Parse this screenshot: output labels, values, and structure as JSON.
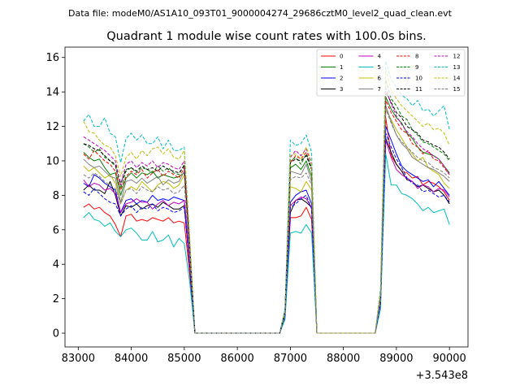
{
  "suptitle": "Data file: modeM0/AS1A10_093T01_9000004274_29686cztM0_level2_quad_clean.evt",
  "chart_data": {
    "type": "line",
    "title": "Quadrant 1 module wise count rates with 100.0s bins.",
    "xlabel": "",
    "ylabel": "",
    "x_offset_label": "+3.543e8",
    "xlim": [
      82750,
      90350
    ],
    "ylim": [
      -0.8,
      16.6
    ],
    "x_ticks": [
      83000,
      84000,
      85000,
      86000,
      87000,
      88000,
      89000,
      90000
    ],
    "x_tick_labels": [
      "83000",
      "84000",
      "85000",
      "86000",
      "87000",
      "88000",
      "89000",
      "90000"
    ],
    "y_ticks": [
      0,
      2,
      4,
      6,
      8,
      10,
      12,
      14,
      16
    ],
    "y_tick_labels": [
      "0",
      "2",
      "4",
      "6",
      "8",
      "10",
      "12",
      "14",
      "16"
    ],
    "x": [
      83100,
      83200,
      83300,
      83400,
      83500,
      83600,
      83700,
      83800,
      83900,
      84000,
      84100,
      84200,
      84300,
      84400,
      84500,
      84600,
      84700,
      84800,
      84900,
      85000,
      85100,
      85200,
      85300,
      85400,
      85500,
      85600,
      85700,
      85800,
      85900,
      86000,
      86100,
      86200,
      86300,
      86400,
      86500,
      86600,
      86700,
      86800,
      86900,
      87000,
      87100,
      87200,
      87300,
      87400,
      87500,
      87600,
      87700,
      87800,
      87900,
      88000,
      88100,
      88200,
      88300,
      88400,
      88500,
      88600,
      88700,
      88800,
      88900,
      89000,
      89100,
      89200,
      89300,
      89400,
      89500,
      89600,
      89700,
      89800,
      89900,
      90000
    ],
    "legend_position": "upper-right",
    "series": [
      {
        "name": "0",
        "color": "#ff0000",
        "dash": "solid",
        "values": [
          7.3,
          7.5,
          7.2,
          7.3,
          7.0,
          6.8,
          6.3,
          5.6,
          6.8,
          6.9,
          6.5,
          6.6,
          6.5,
          6.7,
          6.6,
          6.5,
          6.7,
          6.4,
          6.5,
          6.4,
          3.5,
          0,
          0,
          0,
          0,
          0,
          0,
          0,
          0,
          0,
          0,
          0,
          0,
          0,
          0,
          0,
          0,
          0,
          0.9,
          6.7,
          6.7,
          6.8,
          7.3,
          6.6,
          0,
          0,
          0,
          0,
          0,
          0,
          0,
          0,
          0,
          0,
          0,
          0,
          1.5,
          12.5,
          10.3,
          9.8,
          9.4,
          9.3,
          9.0,
          9.1,
          8.6,
          8.8,
          8.7,
          8.5,
          8.2,
          7.7
        ]
      },
      {
        "name": "1",
        "color": "#008000",
        "dash": "solid",
        "values": [
          10.5,
          10.2,
          10.0,
          10.1,
          9.6,
          9.2,
          9.3,
          8.0,
          9.0,
          9.3,
          9.0,
          9.3,
          9.2,
          9.4,
          9.0,
          9.2,
          9.1,
          9.0,
          9.1,
          9.3,
          5.0,
          0,
          0,
          0,
          0,
          0,
          0,
          0,
          0,
          0,
          0,
          0,
          0,
          0,
          0,
          0,
          0,
          0,
          1.2,
          9.6,
          9.8,
          9.5,
          10.0,
          9.1,
          0,
          0,
          0,
          0,
          0,
          0,
          0,
          0,
          0,
          0,
          0,
          0,
          2.2,
          13.7,
          13.0,
          12.5,
          12.2,
          11.6,
          11.3,
          10.8,
          10.5,
          10.4,
          10.3,
          10.1,
          9.7,
          9.3
        ]
      },
      {
        "name": "2",
        "color": "#0000ff",
        "dash": "solid",
        "values": [
          8.7,
          8.5,
          9.2,
          9.0,
          8.7,
          8.5,
          8.3,
          7.0,
          7.7,
          7.8,
          7.5,
          7.7,
          7.6,
          8.0,
          7.7,
          7.8,
          7.7,
          7.9,
          7.8,
          7.7,
          4.5,
          0,
          0,
          0,
          0,
          0,
          0,
          0,
          0,
          0,
          0,
          0,
          0,
          0,
          0,
          0,
          0,
          0,
          1.0,
          7.6,
          8.0,
          8.2,
          8.3,
          7.5,
          0,
          0,
          0,
          0,
          0,
          0,
          0,
          0,
          0,
          0,
          0,
          0,
          1.8,
          12.0,
          11.2,
          10.4,
          9.7,
          9.4,
          9.2,
          9.0,
          8.8,
          8.9,
          8.5,
          8.8,
          8.4,
          8.0
        ]
      },
      {
        "name": "3",
        "color": "#000000",
        "dash": "solid",
        "values": [
          8.3,
          8.6,
          8.3,
          8.3,
          8.1,
          8.8,
          8.0,
          6.8,
          7.4,
          7.3,
          7.5,
          7.2,
          7.4,
          7.5,
          7.3,
          7.6,
          7.4,
          7.2,
          7.2,
          7.4,
          4.0,
          0,
          0,
          0,
          0,
          0,
          0,
          0,
          0,
          0,
          0,
          0,
          0,
          0,
          0,
          0,
          0,
          0,
          1.0,
          7.0,
          7.7,
          7.8,
          7.6,
          7.3,
          0,
          0,
          0,
          0,
          0,
          0,
          0,
          0,
          0,
          0,
          0,
          0,
          1.7,
          11.3,
          10.5,
          9.8,
          9.4,
          8.9,
          8.8,
          8.5,
          8.6,
          8.4,
          8.2,
          8.3,
          8.0,
          7.5
        ]
      },
      {
        "name": "4",
        "color": "#bf00bf",
        "dash": "solid",
        "values": [
          8.9,
          8.5,
          8.7,
          8.6,
          8.3,
          8.4,
          8.1,
          7.0,
          7.5,
          7.6,
          7.8,
          7.6,
          7.6,
          7.2,
          7.5,
          7.7,
          7.4,
          7.6,
          7.5,
          7.7,
          4.2,
          0,
          0,
          0,
          0,
          0,
          0,
          0,
          0,
          0,
          0,
          0,
          0,
          0,
          0,
          0,
          0,
          0,
          1.1,
          7.4,
          7.7,
          7.9,
          7.8,
          7.3,
          0,
          0,
          0,
          0,
          0,
          0,
          0,
          0,
          0,
          0,
          0,
          0,
          1.7,
          11.2,
          10.2,
          9.5,
          9.2,
          9.0,
          8.8,
          8.4,
          8.6,
          8.5,
          8.2,
          8.4,
          8.3,
          7.9
        ]
      },
      {
        "name": "5",
        "color": "#00bfbf",
        "dash": "solid",
        "values": [
          6.7,
          7.0,
          6.6,
          6.5,
          6.2,
          6.4,
          5.9,
          5.6,
          6.0,
          6.1,
          5.8,
          5.4,
          5.4,
          5.9,
          5.3,
          5.4,
          5.7,
          5.0,
          5.5,
          5.2,
          3.0,
          0,
          0,
          0,
          0,
          0,
          0,
          0,
          0,
          0,
          0,
          0,
          0,
          0,
          0,
          0,
          0,
          0,
          0.8,
          5.8,
          5.9,
          5.8,
          6.3,
          5.8,
          0,
          0,
          0,
          0,
          0,
          0,
          0,
          0,
          0,
          0,
          0,
          0,
          1.4,
          10.4,
          8.6,
          8.6,
          8.1,
          8.0,
          7.8,
          7.5,
          7.1,
          7.3,
          7.0,
          7.1,
          7.2,
          6.3
        ]
      },
      {
        "name": "6",
        "color": "#bfbf00",
        "dash": "solid",
        "values": [
          9.7,
          9.4,
          9.6,
          9.3,
          9.0,
          9.2,
          8.7,
          7.5,
          8.3,
          8.5,
          8.3,
          8.8,
          8.5,
          8.2,
          8.6,
          8.8,
          8.7,
          8.4,
          8.6,
          9.2,
          4.8,
          0,
          0,
          0,
          0,
          0,
          0,
          0,
          0,
          0,
          0,
          0,
          0,
          0,
          0,
          0,
          0,
          0,
          1.1,
          8.5,
          8.4,
          8.2,
          8.8,
          8.3,
          0,
          0,
          0,
          0,
          0,
          0,
          0,
          0,
          0,
          0,
          0,
          0,
          1.9,
          13.0,
          12.4,
          11.8,
          11.3,
          10.8,
          10.4,
          10.0,
          10.2,
          9.6,
          9.4,
          9.2,
          8.7,
          8.4
        ]
      },
      {
        "name": "7",
        "color": "#808080",
        "dash": "solid",
        "values": [
          10.1,
          9.8,
          9.6,
          9.7,
          9.4,
          9.1,
          9.0,
          7.6,
          8.8,
          8.9,
          8.7,
          9.0,
          8.7,
          8.9,
          9.1,
          8.6,
          8.9,
          8.7,
          8.8,
          9.4,
          5.0,
          0,
          0,
          0,
          0,
          0,
          0,
          0,
          0,
          0,
          0,
          0,
          0,
          0,
          0,
          0,
          0,
          0,
          1.2,
          9.4,
          9.3,
          9.2,
          9.8,
          8.8,
          0,
          0,
          0,
          0,
          0,
          0,
          0,
          0,
          0,
          0,
          0,
          0,
          2.1,
          13.2,
          12.3,
          11.5,
          11.0,
          10.7,
          10.2,
          10.0,
          9.8,
          9.6,
          9.5,
          9.3,
          9.1,
          8.8
        ]
      },
      {
        "name": "8",
        "color": "#ff0000",
        "dash": "dashed",
        "values": [
          10.4,
          10.1,
          10.6,
          10.3,
          10.0,
          9.8,
          9.4,
          8.3,
          9.1,
          9.4,
          9.2,
          9.5,
          9.0,
          9.3,
          9.5,
          9.1,
          9.4,
          9.2,
          9.0,
          9.6,
          5.1,
          0,
          0,
          0,
          0,
          0,
          0,
          0,
          0,
          0,
          0,
          0,
          0,
          0,
          0,
          0,
          0,
          0,
          1.2,
          9.9,
          10.3,
          10.1,
          10.5,
          9.5,
          0,
          0,
          0,
          0,
          0,
          0,
          0,
          0,
          0,
          0,
          0,
          0,
          2.1,
          13.5,
          12.8,
          12.3,
          11.8,
          11.6,
          11.0,
          10.8,
          10.4,
          10.6,
          10.1,
          10.0,
          9.6,
          9.2
        ]
      },
      {
        "name": "9",
        "color": "#008000",
        "dash": "dashed",
        "values": [
          11.0,
          10.8,
          10.5,
          10.7,
          10.2,
          10.0,
          9.7,
          8.4,
          9.4,
          9.6,
          9.3,
          9.6,
          9.5,
          9.3,
          9.7,
          9.4,
          9.6,
          9.3,
          9.2,
          9.8,
          5.2,
          0,
          0,
          0,
          0,
          0,
          0,
          0,
          0,
          0,
          0,
          0,
          0,
          0,
          0,
          0,
          0,
          0,
          1.3,
          10.0,
          10.2,
          9.8,
          10.4,
          9.6,
          0,
          0,
          0,
          0,
          0,
          0,
          0,
          0,
          0,
          0,
          0,
          0,
          2.3,
          14.7,
          13.6,
          13.2,
          12.6,
          12.4,
          11.8,
          11.5,
          11.1,
          11.0,
          10.8,
          10.6,
          10.4,
          10.0
        ]
      },
      {
        "name": "10",
        "color": "#0000ff",
        "dash": "dashed",
        "values": [
          8.2,
          8.0,
          8.4,
          8.1,
          7.8,
          7.6,
          7.5,
          6.8,
          7.2,
          7.4,
          7.0,
          7.3,
          7.2,
          7.5,
          7.1,
          7.3,
          7.2,
          7.0,
          7.1,
          7.3,
          3.9,
          0,
          0,
          0,
          0,
          0,
          0,
          0,
          0,
          0,
          0,
          0,
          0,
          0,
          0,
          0,
          0,
          0,
          1.0,
          7.3,
          7.5,
          7.8,
          8.0,
          7.2,
          0,
          0,
          0,
          0,
          0,
          0,
          0,
          0,
          0,
          0,
          0,
          0,
          1.7,
          11.6,
          10.8,
          10.1,
          9.6,
          9.0,
          8.7,
          8.6,
          8.2,
          8.3,
          8.1,
          7.9,
          8.0,
          7.6
        ]
      },
      {
        "name": "11",
        "color": "#000000",
        "dash": "dashed",
        "values": [
          11.0,
          10.9,
          10.7,
          10.6,
          10.3,
          10.0,
          9.8,
          8.7,
          9.5,
          9.6,
          9.4,
          9.7,
          9.5,
          9.6,
          9.4,
          9.7,
          9.5,
          9.4,
          9.3,
          9.7,
          5.2,
          0,
          0,
          0,
          0,
          0,
          0,
          0,
          0,
          0,
          0,
          0,
          0,
          0,
          0,
          0,
          0,
          0,
          1.3,
          9.9,
          10.1,
          10.0,
          10.3,
          9.5,
          0,
          0,
          0,
          0,
          0,
          0,
          0,
          0,
          0,
          0,
          0,
          0,
          2.2,
          14.0,
          13.4,
          12.8,
          12.5,
          12.0,
          11.8,
          11.6,
          11.2,
          11.1,
          10.9,
          10.8,
          10.5,
          10.1
        ]
      },
      {
        "name": "12",
        "color": "#bf00bf",
        "dash": "dashed",
        "values": [
          11.4,
          11.2,
          11.0,
          10.8,
          10.6,
          10.3,
          10.0,
          8.6,
          9.8,
          10.0,
          9.6,
          9.9,
          9.7,
          10.0,
          9.6,
          9.9,
          9.8,
          9.6,
          9.5,
          10.0,
          5.3,
          0,
          0,
          0,
          0,
          0,
          0,
          0,
          0,
          0,
          0,
          0,
          0,
          0,
          0,
          0,
          0,
          0,
          1.3,
          10.2,
          10.6,
          10.3,
          10.7,
          9.8,
          0,
          0,
          0,
          0,
          0,
          0,
          0,
          0,
          0,
          0,
          0,
          0,
          2.3,
          14.2,
          13.3,
          12.6,
          12.1,
          11.7,
          11.4,
          11.0,
          10.7,
          10.5,
          10.3,
          10.1,
          9.7,
          9.2
        ]
      },
      {
        "name": "13",
        "color": "#00bfbf",
        "dash": "dashed",
        "values": [
          12.3,
          12.7,
          12.0,
          12.0,
          12.5,
          11.6,
          11.4,
          9.9,
          11.3,
          11.6,
          11.2,
          11.5,
          11.0,
          11.0,
          11.4,
          10.7,
          11.2,
          10.6,
          10.6,
          10.8,
          5.6,
          0,
          0,
          0,
          0,
          0,
          0,
          0,
          0,
          0,
          0,
          0,
          0,
          0,
          0,
          0,
          0,
          0,
          1.4,
          11.2,
          10.9,
          11.0,
          11.5,
          10.5,
          0,
          0,
          0,
          0,
          0,
          0,
          0,
          0,
          0,
          0,
          0,
          0,
          2.6,
          15.8,
          14.7,
          14.3,
          13.8,
          13.6,
          13.2,
          13.5,
          12.9,
          13.0,
          12.6,
          12.9,
          13.2,
          11.8
        ]
      },
      {
        "name": "14",
        "color": "#bfbf00",
        "dash": "dashed",
        "values": [
          12.3,
          11.7,
          11.6,
          11.2,
          10.9,
          10.8,
          10.3,
          9.1,
          10.2,
          10.5,
          10.1,
          10.6,
          10.3,
          10.7,
          10.8,
          10.4,
          10.7,
          10.2,
          10.1,
          10.6,
          5.6,
          0,
          0,
          0,
          0,
          0,
          0,
          0,
          0,
          0,
          0,
          0,
          0,
          0,
          0,
          0,
          0,
          0,
          1.3,
          10.3,
          10.4,
          10.1,
          10.8,
          9.9,
          0,
          0,
          0,
          0,
          0,
          0,
          0,
          0,
          0,
          0,
          0,
          0,
          2.4,
          15.3,
          14.1,
          13.6,
          13.2,
          12.9,
          12.6,
          12.3,
          12.0,
          12.2,
          11.8,
          11.9,
          11.6,
          10.9
        ]
      },
      {
        "name": "15",
        "color": "#808080",
        "dash": "dashed",
        "values": [
          9.2,
          9.0,
          9.3,
          9.1,
          8.8,
          8.6,
          8.4,
          7.5,
          8.3,
          8.4,
          8.1,
          8.5,
          8.3,
          8.2,
          8.5,
          8.3,
          8.4,
          8.1,
          8.2,
          8.6,
          4.6,
          0,
          0,
          0,
          0,
          0,
          0,
          0,
          0,
          0,
          0,
          0,
          0,
          0,
          0,
          0,
          0,
          0,
          1.1,
          8.9,
          9.1,
          9.0,
          9.3,
          8.6,
          0,
          0,
          0,
          0,
          0,
          0,
          0,
          0,
          0,
          0,
          0,
          0,
          2.0,
          13.0,
          12.2,
          11.5,
          11.1,
          10.8,
          10.5,
          10.2,
          10.0,
          9.9,
          9.6,
          9.5,
          9.3,
          9.0
        ]
      }
    ]
  }
}
